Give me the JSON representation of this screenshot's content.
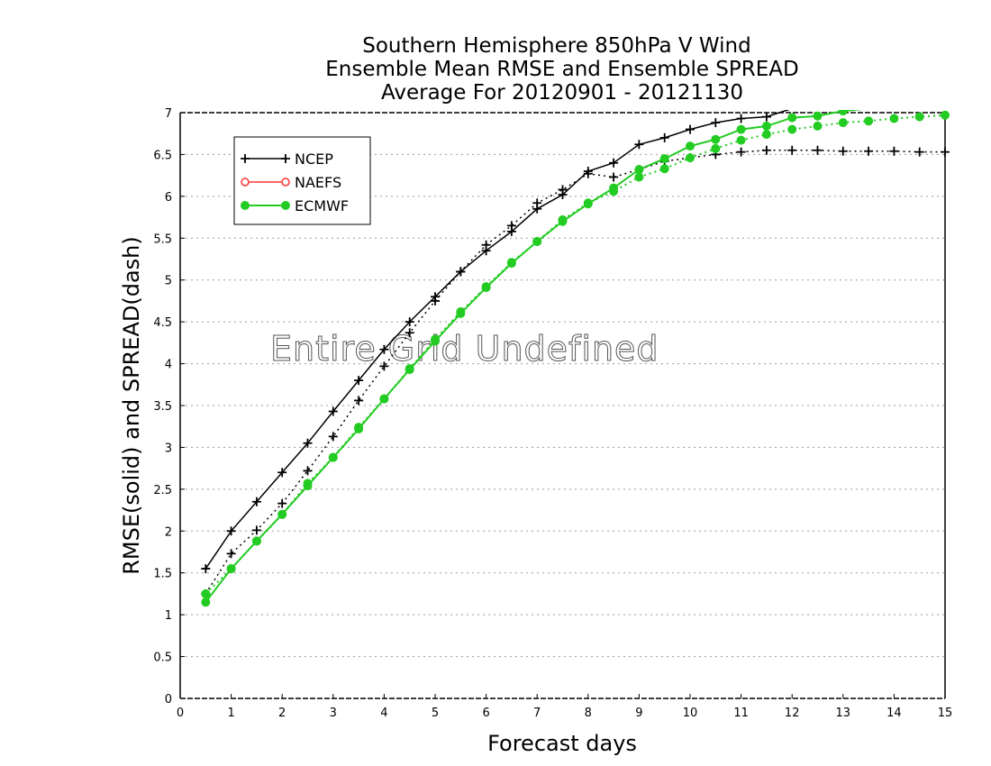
{
  "chart_data": {
    "type": "line",
    "title": [
      "Southern Hemisphere 850hPa V Wind",
      "Ensemble Mean RMSE and Ensemble SPREAD",
      "Average For 20120901 - 20121130"
    ],
    "xlabel": "Forecast days",
    "ylabel": "RMSE(solid) and SPREAD(dash)",
    "xlim": [
      0,
      15
    ],
    "ylim": [
      0,
      7
    ],
    "xticks": [
      0,
      1,
      2,
      3,
      4,
      5,
      6,
      7,
      8,
      9,
      10,
      11,
      12,
      13,
      14,
      15
    ],
    "yticks": [
      0,
      0.5,
      1,
      1.5,
      2,
      2.5,
      3,
      3.5,
      4,
      4.5,
      5,
      5.5,
      6,
      6.5,
      7
    ],
    "ytick_labels": [
      "0",
      "0.5",
      "1",
      "1.5",
      "2",
      "2.5",
      "3",
      "3.5",
      "4",
      "4.5",
      "5",
      "5.5",
      "6",
      "6.5",
      "7"
    ],
    "grid": "horizontal dotted",
    "legend": {
      "placement": "top-left",
      "entries": [
        "NCEP",
        "NAEFS",
        "ECMWF"
      ]
    },
    "annotation": "Entire Grid Undefined",
    "series": [
      {
        "name": "NCEP",
        "kind": "rmse",
        "style": "solid",
        "marker": "plus",
        "color": "#000000",
        "x": [
          0.5,
          1,
          1.5,
          2,
          2.5,
          3,
          3.5,
          4,
          4.5,
          5,
          5.5,
          6,
          6.5,
          7,
          7.5,
          8,
          8.5,
          9,
          9.5,
          10,
          10.5,
          11,
          11.5,
          12,
          12.5,
          13,
          13.5,
          14,
          14.5,
          15
        ],
        "y": [
          1.55,
          2.0,
          2.35,
          2.7,
          3.05,
          3.43,
          3.8,
          4.17,
          4.5,
          4.8,
          5.1,
          5.35,
          5.58,
          5.85,
          6.02,
          6.3,
          6.4,
          6.62,
          6.7,
          6.8,
          6.88,
          6.93,
          6.95,
          7.05,
          7.1,
          7.15,
          7.2,
          7.25,
          7.28,
          7.3
        ]
      },
      {
        "name": "NCEP",
        "kind": "spread",
        "style": "dash",
        "marker": "plus",
        "color": "#000000",
        "x": [
          0.5,
          1,
          1.5,
          2,
          2.5,
          3,
          3.5,
          4,
          4.5,
          5,
          5.5,
          6,
          6.5,
          7,
          7.5,
          8,
          8.5,
          9,
          9.5,
          10,
          10.5,
          11,
          11.5,
          12,
          12.5,
          13,
          13.5,
          14,
          14.5,
          15
        ],
        "y": [
          1.25,
          1.73,
          2.01,
          2.33,
          2.72,
          3.13,
          3.56,
          3.97,
          4.37,
          4.75,
          5.1,
          5.42,
          5.65,
          5.92,
          6.08,
          6.27,
          6.23,
          6.32,
          6.42,
          6.46,
          6.5,
          6.53,
          6.55,
          6.55,
          6.55,
          6.54,
          6.54,
          6.54,
          6.53,
          6.53
        ]
      },
      {
        "name": "ECMWF",
        "kind": "rmse",
        "style": "solid",
        "marker": "dot",
        "color": "#22cc22",
        "x": [
          0.5,
          1,
          1.5,
          2,
          2.5,
          3,
          3.5,
          4,
          4.5,
          5,
          5.5,
          6,
          6.5,
          7,
          7.5,
          8,
          8.5,
          9,
          9.5,
          10,
          10.5,
          11,
          11.5,
          12,
          12.5,
          13,
          13.5,
          14,
          14.5,
          15
        ],
        "y": [
          1.15,
          1.55,
          1.88,
          2.2,
          2.54,
          2.88,
          3.22,
          3.58,
          3.93,
          4.27,
          4.6,
          4.91,
          5.2,
          5.46,
          5.7,
          5.91,
          6.1,
          6.32,
          6.45,
          6.6,
          6.68,
          6.8,
          6.84,
          6.94,
          6.96,
          7.02,
          7.05,
          7.1,
          7.12,
          7.15
        ]
      },
      {
        "name": "ECMWF",
        "kind": "spread",
        "style": "dash",
        "marker": "dot",
        "color": "#22cc22",
        "x": [
          0.5,
          1,
          1.5,
          2,
          2.5,
          3,
          3.5,
          4,
          4.5,
          5,
          5.5,
          6,
          6.5,
          7,
          7.5,
          8,
          8.5,
          9,
          9.5,
          10,
          10.5,
          11,
          11.5,
          12,
          12.5,
          13,
          13.5,
          14,
          14.5,
          15
        ],
        "y": [
          1.25,
          1.55,
          1.88,
          2.2,
          2.57,
          2.88,
          3.24,
          3.58,
          3.94,
          4.29,
          4.62,
          4.92,
          5.21,
          5.46,
          5.72,
          5.92,
          6.06,
          6.23,
          6.33,
          6.46,
          6.57,
          6.67,
          6.74,
          6.8,
          6.84,
          6.88,
          6.9,
          6.93,
          6.95,
          6.97
        ]
      }
    ]
  }
}
